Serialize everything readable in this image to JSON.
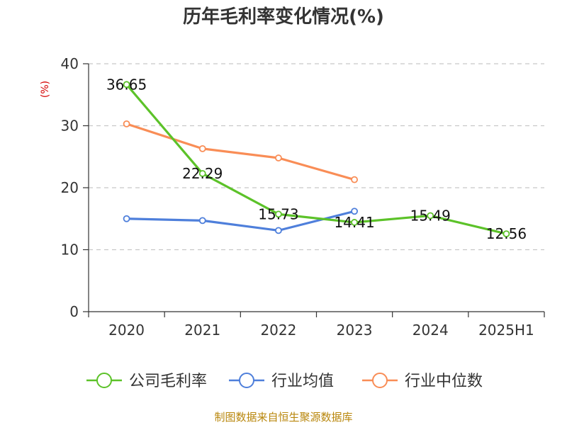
{
  "chart_data": {
    "type": "line",
    "title": "历年毛利率变化情况(%)",
    "ylabel": "(%)",
    "ylim": [
      0,
      40
    ],
    "yticks": [
      0,
      10,
      20,
      30,
      40
    ],
    "categories": [
      "2020",
      "2021",
      "2022",
      "2023",
      "2024",
      "2025H1"
    ],
    "grid": true,
    "legend_position": "bottom",
    "series": [
      {
        "name": "公司毛利率",
        "color": "#5cc229",
        "values": [
          36.65,
          22.29,
          15.73,
          14.41,
          15.49,
          12.56
        ],
        "labels": [
          "36.65",
          "22.29",
          "15.73",
          "14.41",
          "15.49",
          "12.56"
        ]
      },
      {
        "name": "行业均值",
        "color": "#4e7fdb",
        "values": [
          15.0,
          14.7,
          13.1,
          16.2,
          null,
          null
        ],
        "labels": null
      },
      {
        "name": "行业中位数",
        "color": "#f98d56",
        "values": [
          30.3,
          26.3,
          24.8,
          21.3,
          null,
          null
        ],
        "labels": null
      }
    ],
    "source": "制图数据来自恒生聚源数据库"
  }
}
